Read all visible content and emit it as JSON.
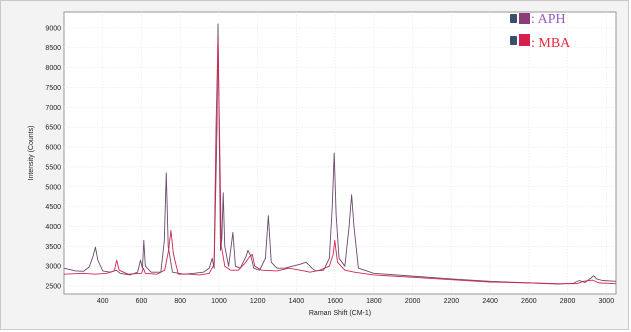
{
  "chart_data": {
    "type": "line",
    "title": "",
    "xlabel": "Raman Shift (CM-1)",
    "ylabel": "Intensity (Counts)",
    "xlim": [
      200,
      3050
    ],
    "ylim": [
      2300,
      9400
    ],
    "x_ticks": [
      400,
      600,
      800,
      1000,
      1200,
      1400,
      1600,
      1800,
      2000,
      2200,
      2400,
      2600,
      2800,
      3000
    ],
    "y_ticks": [
      2500,
      3000,
      3500,
      4000,
      4500,
      5000,
      5500,
      6000,
      6500,
      7000,
      7500,
      8000,
      8500,
      9000
    ],
    "grid": true,
    "legend_position": "top-right",
    "legend": [
      {
        "label": ": APH",
        "color": "#8b3d7a",
        "text_color": "#9b59c6"
      },
      {
        "label": ": MBA",
        "color": "#d6204e",
        "text_color": "#e8283c"
      }
    ],
    "series": [
      {
        "name": "APH",
        "color": "#6b4a6e",
        "points": [
          [
            200,
            2950
          ],
          [
            260,
            2880
          ],
          [
            300,
            2870
          ],
          [
            330,
            2980
          ],
          [
            350,
            3250
          ],
          [
            362,
            3480
          ],
          [
            375,
            3150
          ],
          [
            400,
            2880
          ],
          [
            440,
            2850
          ],
          [
            470,
            2900
          ],
          [
            490,
            2820
          ],
          [
            540,
            2780
          ],
          [
            580,
            2850
          ],
          [
            595,
            3150
          ],
          [
            605,
            2950
          ],
          [
            612,
            3650
          ],
          [
            620,
            3000
          ],
          [
            650,
            2850
          ],
          [
            700,
            2850
          ],
          [
            718,
            3650
          ],
          [
            728,
            5350
          ],
          [
            738,
            3500
          ],
          [
            760,
            2850
          ],
          [
            820,
            2800
          ],
          [
            870,
            2820
          ],
          [
            920,
            2850
          ],
          [
            950,
            2950
          ],
          [
            965,
            3200
          ],
          [
            975,
            2950
          ],
          [
            990,
            6500
          ],
          [
            995,
            9100
          ],
          [
            1001,
            6600
          ],
          [
            1008,
            3400
          ],
          [
            1015,
            3700
          ],
          [
            1022,
            4850
          ],
          [
            1030,
            3500
          ],
          [
            1050,
            3000
          ],
          [
            1072,
            3850
          ],
          [
            1085,
            3000
          ],
          [
            1110,
            2950
          ],
          [
            1140,
            3250
          ],
          [
            1150,
            3400
          ],
          [
            1165,
            3250
          ],
          [
            1180,
            2950
          ],
          [
            1210,
            2900
          ],
          [
            1240,
            3200
          ],
          [
            1255,
            4270
          ],
          [
            1270,
            3100
          ],
          [
            1300,
            2950
          ],
          [
            1340,
            2950
          ],
          [
            1380,
            3000
          ],
          [
            1420,
            3050
          ],
          [
            1450,
            3100
          ],
          [
            1480,
            2950
          ],
          [
            1500,
            2880
          ],
          [
            1540,
            2900
          ],
          [
            1570,
            3200
          ],
          [
            1585,
            4500
          ],
          [
            1595,
            5850
          ],
          [
            1605,
            4300
          ],
          [
            1620,
            3200
          ],
          [
            1650,
            3000
          ],
          [
            1672,
            4000
          ],
          [
            1685,
            4800
          ],
          [
            1697,
            4000
          ],
          [
            1720,
            2950
          ],
          [
            1800,
            2820
          ],
          [
            2000,
            2750
          ],
          [
            2200,
            2680
          ],
          [
            2400,
            2620
          ],
          [
            2600,
            2580
          ],
          [
            2750,
            2550
          ],
          [
            2830,
            2570
          ],
          [
            2860,
            2640
          ],
          [
            2890,
            2590
          ],
          [
            2920,
            2700
          ],
          [
            2935,
            2760
          ],
          [
            2950,
            2680
          ],
          [
            2980,
            2640
          ],
          [
            3050,
            2620
          ]
        ]
      },
      {
        "name": "MBA",
        "color": "#d2284f",
        "points": [
          [
            200,
            2800
          ],
          [
            300,
            2820
          ],
          [
            360,
            2800
          ],
          [
            420,
            2820
          ],
          [
            460,
            2880
          ],
          [
            472,
            3150
          ],
          [
            485,
            2900
          ],
          [
            530,
            2800
          ],
          [
            600,
            2820
          ],
          [
            610,
            2950
          ],
          [
            620,
            2820
          ],
          [
            680,
            2800
          ],
          [
            720,
            2900
          ],
          [
            740,
            3400
          ],
          [
            752,
            3900
          ],
          [
            765,
            3300
          ],
          [
            790,
            2800
          ],
          [
            850,
            2800
          ],
          [
            900,
            2780
          ],
          [
            950,
            2820
          ],
          [
            975,
            3050
          ],
          [
            985,
            6500
          ],
          [
            995,
            8700
          ],
          [
            1002,
            6700
          ],
          [
            1012,
            3500
          ],
          [
            1020,
            3300
          ],
          [
            1030,
            3000
          ],
          [
            1060,
            2900
          ],
          [
            1100,
            2900
          ],
          [
            1130,
            3050
          ],
          [
            1160,
            3250
          ],
          [
            1172,
            3300
          ],
          [
            1185,
            3000
          ],
          [
            1220,
            2900
          ],
          [
            1300,
            2880
          ],
          [
            1360,
            2950
          ],
          [
            1420,
            2900
          ],
          [
            1470,
            2850
          ],
          [
            1520,
            2900
          ],
          [
            1570,
            3000
          ],
          [
            1590,
            3300
          ],
          [
            1598,
            3650
          ],
          [
            1612,
            3100
          ],
          [
            1650,
            2900
          ],
          [
            1700,
            2850
          ],
          [
            1800,
            2780
          ],
          [
            2000,
            2720
          ],
          [
            2200,
            2660
          ],
          [
            2400,
            2600
          ],
          [
            2600,
            2580
          ],
          [
            2750,
            2560
          ],
          [
            2850,
            2560
          ],
          [
            2880,
            2620
          ],
          [
            2930,
            2650
          ],
          [
            2960,
            2580
          ],
          [
            3050,
            2560
          ]
        ]
      }
    ]
  }
}
